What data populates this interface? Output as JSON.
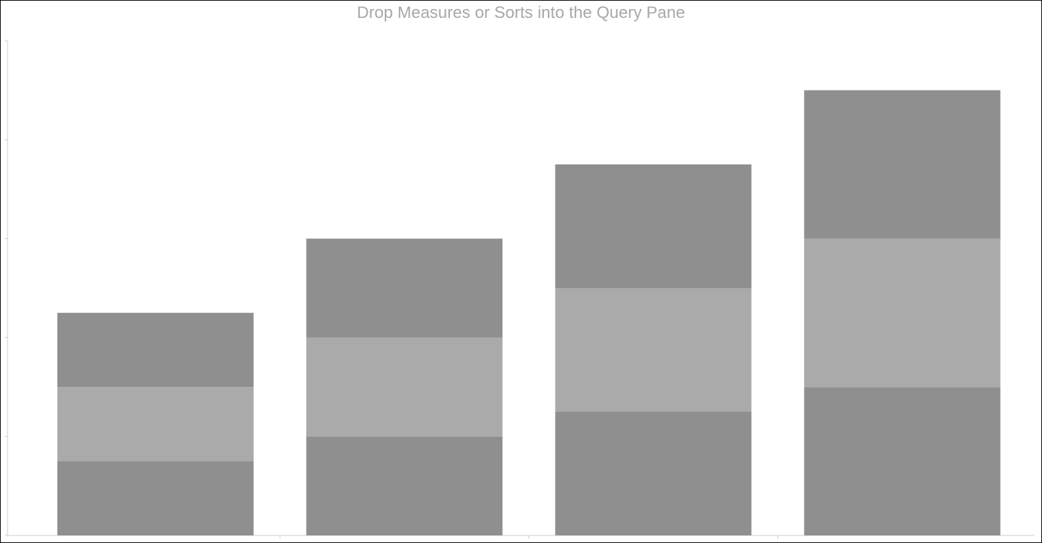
{
  "chart_data": {
    "type": "bar",
    "stacked": true,
    "title": "Drop Measures or Sorts into the Query Pane",
    "xlabel": "",
    "ylabel": "",
    "categories": [
      "",
      "",
      "",
      ""
    ],
    "series": [
      {
        "name": "",
        "values": [
          3,
          4,
          5,
          6
        ],
        "color": "#8f8f8f"
      },
      {
        "name": "",
        "values": [
          3,
          4,
          5,
          6
        ],
        "color": "#aaaaaa"
      },
      {
        "name": "",
        "values": [
          3,
          4,
          5,
          6
        ],
        "color": "#8f8f8f"
      }
    ],
    "ylim": [
      0,
      20
    ],
    "yticks": [
      0,
      4,
      8,
      12,
      16,
      20
    ],
    "grid": false,
    "legend": "none"
  },
  "colors": {
    "title": "#a8a8a8",
    "axis": "#cccccc",
    "border": "#000000"
  }
}
